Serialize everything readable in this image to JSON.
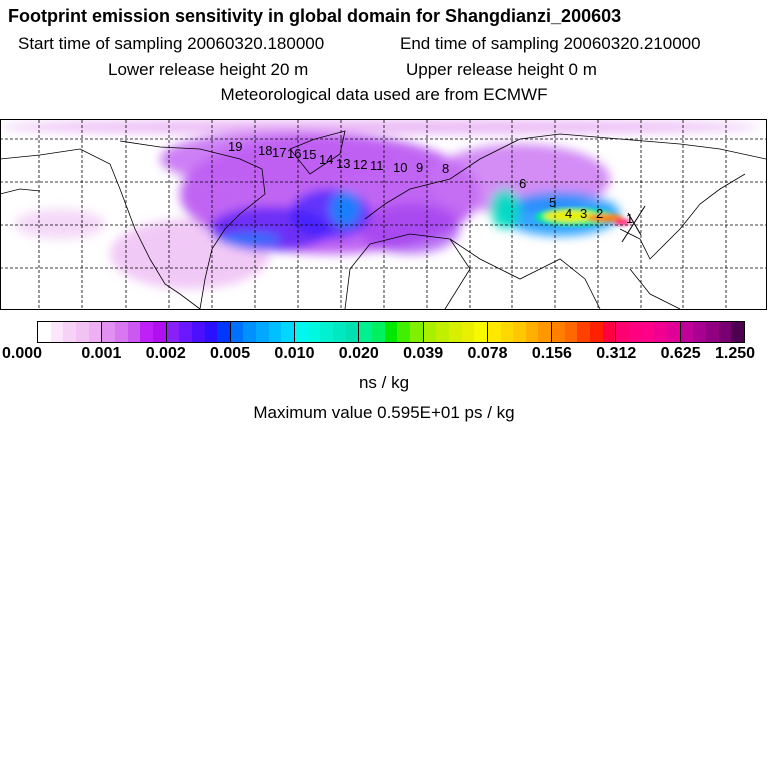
{
  "header": {
    "title": "Footprint emission sensitivity in global domain for Shangdianzi_200603",
    "start_time": "Start time of sampling 20060320.180000",
    "end_time": "End time of sampling 20060320.210000",
    "lower_height": "Lower release height   20 m",
    "upper_height": "Upper release height    0 m",
    "met_data": "Meteorological data used are from ECMWF"
  },
  "map": {
    "station": "Shangdianzi",
    "trajectory_labels": [
      "1",
      "2",
      "3",
      "4",
      "5",
      "6",
      "8",
      "9",
      "10",
      "11",
      "12",
      "13",
      "14",
      "15",
      "16",
      "17",
      "18",
      "19"
    ]
  },
  "colorbar": {
    "ticks": [
      "0.000",
      "0.001",
      "0.002",
      "0.005",
      "0.010",
      "0.020",
      "0.039",
      "0.078",
      "0.156",
      "0.312",
      "0.625",
      "1.250"
    ],
    "segments": [
      [
        "#ffffff",
        "#fbe6fb",
        "#f6d3f6",
        "#f2c2f4",
        "#eeb0f2"
      ],
      [
        "#e090f0",
        "#d878f0",
        "#cc58f2",
        "#c020f8",
        "#b010f0"
      ],
      [
        "#8a20f8",
        "#6a18ff",
        "#4a10ff",
        "#2a10ff",
        "#0038ff"
      ],
      [
        "#0070ff",
        "#0090ff",
        "#00a8ff",
        "#00c0ff",
        "#00d8ff"
      ],
      [
        "#00f8f0",
        "#00f8e0",
        "#00f0d0",
        "#00e8c0",
        "#00e0b0"
      ],
      [
        "#00f090",
        "#00f060",
        "#00e800",
        "#40f000",
        "#80f000"
      ],
      [
        "#a8f000",
        "#c0f000",
        "#d8f000",
        "#e8f000",
        "#f8f800"
      ],
      [
        "#ffe800",
        "#ffd800",
        "#ffc800",
        "#ffb000",
        "#ff9800"
      ],
      [
        "#ff8000",
        "#ff6800",
        "#ff4000",
        "#ff2000",
        "#ff0040"
      ],
      [
        "#ff0070",
        "#ff0080",
        "#ff0088",
        "#f00090",
        "#e00098"
      ],
      [
        "#c00098",
        "#a80090",
        "#900080",
        "#780070",
        "#500050"
      ]
    ],
    "unit": "ns / kg",
    "max_value": "Maximum value  0.595E+01 ps / kg"
  }
}
